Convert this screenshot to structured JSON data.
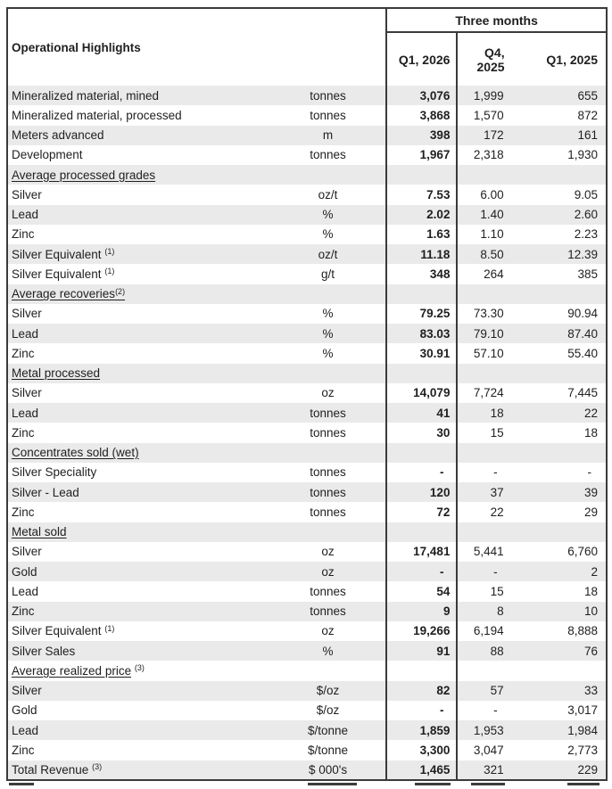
{
  "table": {
    "title": "Operational Highlights",
    "period_header": "Three months",
    "columns": [
      "Q1, 2026",
      "Q4, 2025",
      "Q1, 2025"
    ],
    "rows": [
      {
        "type": "data",
        "label": "Mineralized material, mined",
        "unit": "tonnes",
        "values": [
          "3,076",
          "1,999",
          "655"
        ]
      },
      {
        "type": "data",
        "label": "Mineralized material, processed",
        "unit": "tonnes",
        "values": [
          "3,868",
          "1,570",
          "872"
        ]
      },
      {
        "type": "data",
        "label": "Meters advanced",
        "unit": "m",
        "values": [
          "398",
          "172",
          "161"
        ]
      },
      {
        "type": "data",
        "label": "Development",
        "unit": "tonnes",
        "values": [
          "1,967",
          "2,318",
          "1,930"
        ]
      },
      {
        "type": "section",
        "label": "Average processed grades",
        "sup": "",
        "sup_space": false
      },
      {
        "type": "data",
        "label": "Silver",
        "unit": "oz/t",
        "values": [
          "7.53",
          "6.00",
          "9.05"
        ]
      },
      {
        "type": "data",
        "label": "Lead",
        "unit": "%",
        "values": [
          "2.02",
          "1.40",
          "2.60"
        ]
      },
      {
        "type": "data",
        "label": "Zinc",
        "unit": "%",
        "values": [
          "1.63",
          "1.10",
          "2.23"
        ]
      },
      {
        "type": "data",
        "label": "Silver Equivalent",
        "sup": "(1)",
        "sup_space": true,
        "unit": "oz/t",
        "values": [
          "11.18",
          "8.50",
          "12.39"
        ]
      },
      {
        "type": "data",
        "label": "Silver Equivalent",
        "sup": "(1)",
        "sup_space": true,
        "unit": "g/t",
        "values": [
          "348",
          "264",
          "385"
        ]
      },
      {
        "type": "section",
        "label": "Average recoveries",
        "sup": "(2)",
        "sup_space": false
      },
      {
        "type": "data",
        "label": "Silver",
        "unit": "%",
        "values": [
          "79.25",
          "73.30",
          "90.94"
        ]
      },
      {
        "type": "data",
        "label": "Lead",
        "unit": "%",
        "values": [
          "83.03",
          "79.10",
          "87.40"
        ]
      },
      {
        "type": "data",
        "label": "Zinc",
        "unit": "%",
        "values": [
          "30.91",
          "57.10",
          "55.40"
        ]
      },
      {
        "type": "section",
        "label": "Metal processed",
        "sup": "",
        "sup_space": false
      },
      {
        "type": "data",
        "label": "Silver",
        "unit": "oz",
        "values": [
          "14,079",
          "7,724",
          "7,445"
        ]
      },
      {
        "type": "data",
        "label": "Lead",
        "unit": "tonnes",
        "values": [
          "41",
          "18",
          "22"
        ]
      },
      {
        "type": "data",
        "label": "Zinc",
        "unit": "tonnes",
        "values": [
          "30",
          "15",
          "18"
        ]
      },
      {
        "type": "section",
        "label": "Concentrates sold (wet)",
        "sup": "",
        "sup_space": false
      },
      {
        "type": "data",
        "label": "Silver Speciality",
        "unit": "tonnes",
        "values": [
          "-",
          "-",
          "-"
        ]
      },
      {
        "type": "data",
        "label": "Silver - Lead",
        "unit": "tonnes",
        "values": [
          "120",
          "37",
          "39"
        ]
      },
      {
        "type": "data",
        "label": "Zinc",
        "unit": "tonnes",
        "values": [
          "72",
          "22",
          "29"
        ]
      },
      {
        "type": "section",
        "label": "Metal sold",
        "sup": "",
        "sup_space": false
      },
      {
        "type": "data",
        "label": "Silver",
        "unit": "oz",
        "values": [
          "17,481",
          "5,441",
          "6,760"
        ]
      },
      {
        "type": "data",
        "label": "Gold",
        "unit": "oz",
        "values": [
          "-",
          "-",
          "2"
        ]
      },
      {
        "type": "data",
        "label": "Lead",
        "unit": "tonnes",
        "values": [
          "54",
          "15",
          "18"
        ]
      },
      {
        "type": "data",
        "label": "Zinc",
        "unit": "tonnes",
        "values": [
          "9",
          "8",
          "10"
        ]
      },
      {
        "type": "data",
        "label": "Silver Equivalent",
        "sup": "(1)",
        "sup_space": true,
        "unit": "oz",
        "values": [
          "19,266",
          "6,194",
          "8,888"
        ]
      },
      {
        "type": "data",
        "label": "Silver Sales",
        "unit": "%",
        "values": [
          "91",
          "88",
          "76"
        ]
      },
      {
        "type": "section",
        "label": "Average realized price",
        "sup": "(3)",
        "sup_space": true
      },
      {
        "type": "data",
        "label": "Silver",
        "unit": "$/oz",
        "values": [
          "82",
          "57",
          "33"
        ]
      },
      {
        "type": "data",
        "label": "Gold",
        "unit": "$/oz",
        "values": [
          "-",
          "-",
          "3,017"
        ]
      },
      {
        "type": "data",
        "label": "Lead",
        "unit": "$/tonne",
        "values": [
          "1,859",
          "1,953",
          "1,984"
        ]
      },
      {
        "type": "data",
        "label": "Zinc",
        "unit": "$/tonne",
        "values": [
          "3,300",
          "3,047",
          "2,773"
        ]
      },
      {
        "type": "data",
        "label": "Total Revenue",
        "sup": "(3)",
        "sup_space": true,
        "unit": "$ 000's",
        "values": [
          "1,465",
          "321",
          "229"
        ]
      }
    ],
    "colors": {
      "row_shade": "#eaeaea",
      "border": "#3a3a3a",
      "text": "#1f1f1f"
    }
  }
}
